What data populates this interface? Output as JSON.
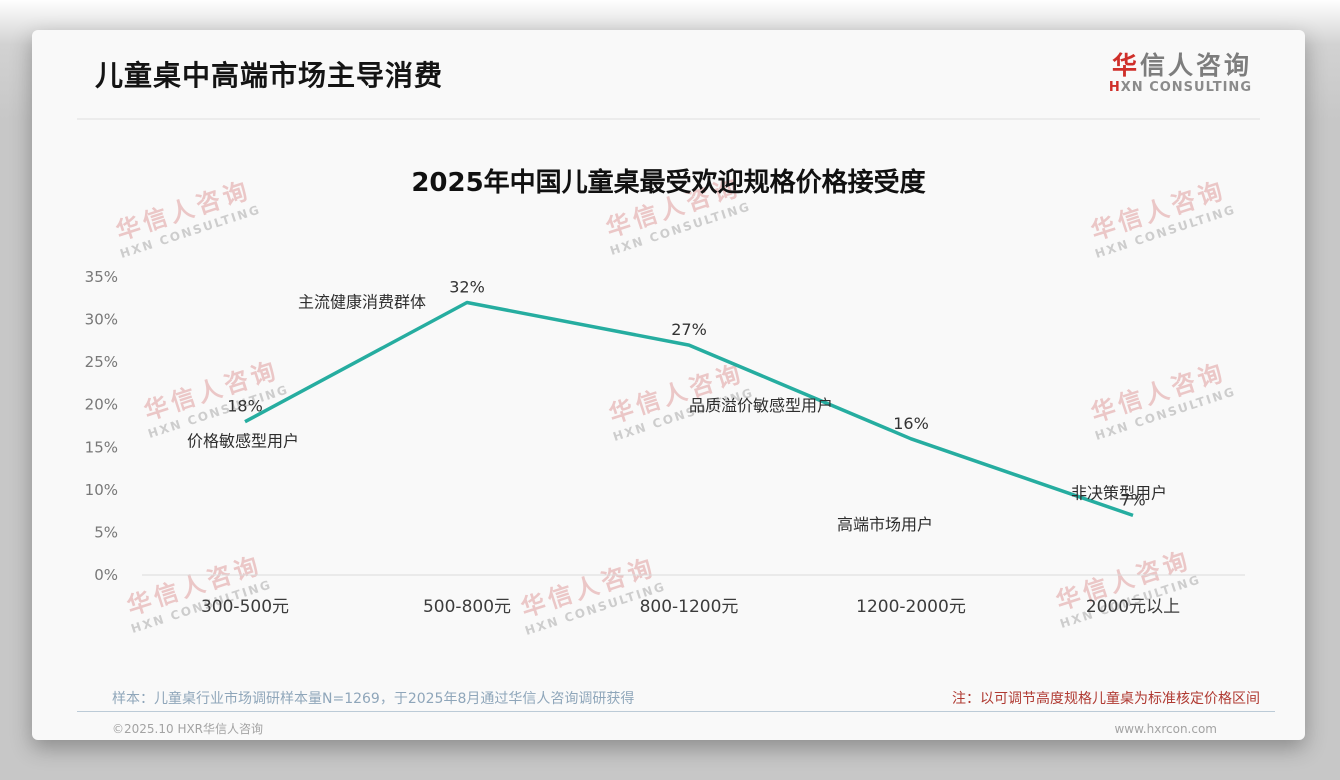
{
  "page": {
    "title": "儿童桌中高端市场主导消费"
  },
  "logo": {
    "zh_first": "华",
    "zh_rest": "信人咨询",
    "en_first": "H",
    "en_rest": "XN CONSULTING"
  },
  "watermark": {
    "zh": "华信人咨询",
    "en": "HXN CONSULTING"
  },
  "chart_data": {
    "type": "line",
    "title": "2025年中国儿童桌最受欢迎规格价格接受度",
    "categories": [
      "300-500元",
      "500-800元",
      "800-1200元",
      "1200-2000元",
      "2000元以上"
    ],
    "values": [
      18,
      32,
      27,
      16,
      7
    ],
    "value_labels": [
      "18%",
      "32%",
      "27%",
      "16%",
      "7%"
    ],
    "point_annotations": [
      "价格敏感型用户",
      "主流健康消费群体",
      "品质溢价敏感型用户",
      "高端市场用户",
      "非决策型用户"
    ],
    "y_ticks": [
      "35%",
      "30%",
      "25%",
      "20%",
      "15%",
      "10%",
      "5%",
      "0%"
    ],
    "ylim": [
      0,
      35
    ],
    "grid": false,
    "legend": "none",
    "line_color": "#26ada0"
  },
  "footer": {
    "sample_note": "样本：儿童桌行业市场调研样本量N=1269，于2025年8月通过华信人咨询调研获得",
    "price_note": "注：以可调节高度规格儿童桌为标准核定价格区间",
    "copyright": "©2025.10 HXR华信人咨询",
    "website": "www.hxrcon.com"
  },
  "colors": {
    "accent_red": "#cf2f2a",
    "note_red": "#b03a32",
    "sample_blue": "#8fa6ba",
    "line_teal": "#26ada0"
  }
}
